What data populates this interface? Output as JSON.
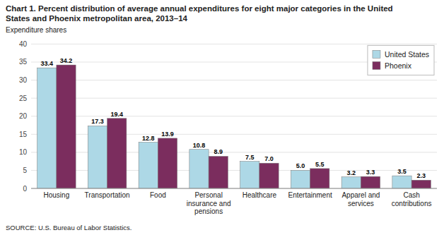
{
  "chart_data": {
    "type": "bar",
    "title": "Chart 1. Percent distribution of average annual expenditures for eight major categories in the United\nStates and Phoenix metropolitan area, 2013–14",
    "ylabel": "Expenditure shares",
    "source": "SOURCE: U.S. Bureau of Labor Statistics.",
    "categories": [
      "Housing",
      "Transportation",
      "Food",
      "Personal\ninsurance and\npensions",
      "Healthcare",
      "Entertainment",
      "Apparel and\nservices",
      "Cash\ncontributions"
    ],
    "series": [
      {
        "name": "United States",
        "color": "#ADD8E6",
        "values": [
          33.4,
          17.3,
          12.8,
          10.8,
          7.5,
          5.0,
          3.2,
          3.5
        ],
        "value_labels": [
          "33.4",
          "17.3",
          "12.8",
          "10.8",
          "7.5",
          "5.0",
          "3.2",
          "3.5"
        ]
      },
      {
        "name": "Phoenix",
        "color": "#7B2D5E",
        "values": [
          34.2,
          19.4,
          13.9,
          8.9,
          7.0,
          5.5,
          3.3,
          2.3
        ],
        "value_labels": [
          "34.2",
          "19.4",
          "13.9",
          "8.9",
          "7.0",
          "5.5",
          "3.3",
          "2.3"
        ]
      }
    ],
    "ylim": [
      0,
      40
    ],
    "yticks": [
      0,
      5,
      10,
      15,
      20,
      25,
      30,
      35,
      40
    ],
    "grid": true,
    "legend": "upper right",
    "data_labels": true
  }
}
